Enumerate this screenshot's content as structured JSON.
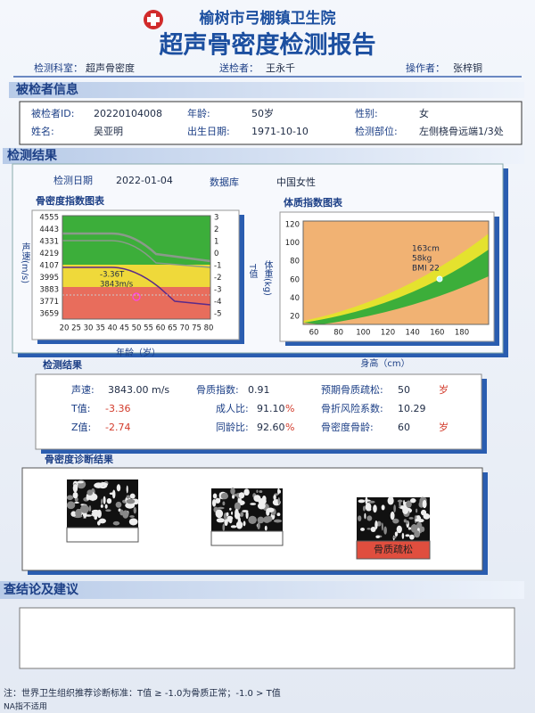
{
  "header": {
    "hospital": "榆树市弓棚镇卫生院",
    "title": "超声骨密度检测报告"
  },
  "info_line": [
    {
      "label": "检测科室：",
      "value": "超声骨密度"
    },
    {
      "label": "送检者：",
      "value": "王永千"
    },
    {
      "label": "操作者：",
      "value": "张梓铜"
    }
  ],
  "patient": {
    "title": "被检者信息",
    "fields": [
      {
        "label": "被检者ID:",
        "value": "20220104008"
      },
      {
        "label": "年龄:",
        "value": "50岁"
      },
      {
        "label": "性别:",
        "value": "女"
      },
      {
        "label": "姓名:",
        "value": "吴亚明"
      },
      {
        "label": "出生日期:",
        "value": "1971-10-10"
      },
      {
        "label": "检测部位:",
        "value": "左侧桡骨远端1/3处"
      }
    ]
  },
  "results": {
    "title": "检测结果",
    "date_label": "检测日期",
    "date": "2022-01-04",
    "db_label": "数据库",
    "db": "中国女性",
    "bmd_chart": {
      "title": "骨密度指数图表",
      "y_label": "声速(m/s)",
      "y2_label": "T值",
      "x_label": "年龄（岁）",
      "yticks": [
        "4555",
        "4443",
        "4331",
        "4219",
        "4107",
        "3995",
        "3883",
        "3771",
        "3659"
      ],
      "y2ticks": [
        "3",
        "2",
        "1",
        "0",
        "-1",
        "-2",
        "-3",
        "-4",
        "-5"
      ],
      "xticks": [
        "20",
        "25",
        "30",
        "35",
        "40",
        "45",
        "50",
        "55",
        "60",
        "65",
        "70",
        "75",
        "80"
      ],
      "annotations": [
        "-3.36T",
        "3843m/s"
      ]
    },
    "bmi_chart": {
      "title": "体质指数图表",
      "y_label": "体重(kg)",
      "x_label": "身高（cm）",
      "yticks": [
        "120",
        "100",
        "80",
        "60",
        "40",
        "20"
      ],
      "xticks": [
        "60",
        "80",
        "100",
        "120",
        "140",
        "160",
        "180"
      ],
      "annotations": [
        "163cm",
        "58kg",
        "BMI 22"
      ]
    }
  },
  "measurements": {
    "title": "检测结果",
    "items": [
      {
        "label": "声速:",
        "value": "3843.00",
        "unit": "m/s"
      },
      {
        "label": "T值:",
        "value": "-3.36"
      },
      {
        "label": "Z值:",
        "value": "-2.74"
      },
      {
        "label": "骨质指数:",
        "value": "0.91"
      },
      {
        "label": "成人比:",
        "value": "91.10",
        "unit": "%"
      },
      {
        "label": "同龄比:",
        "value": "92.60",
        "unit": "%"
      },
      {
        "label": "预期骨质疏松:",
        "value": "50",
        "unit": "岁"
      },
      {
        "label": "骨折风险系数:",
        "value": "10.29"
      },
      {
        "label": "骨密度骨龄:",
        "value": "60",
        "unit": "岁"
      }
    ]
  },
  "diagnosis": {
    "title": "骨密度诊断结果",
    "result": "骨质疏松"
  },
  "conclusion": {
    "title": "查结论及建议"
  },
  "footer": {
    "note": "注：世界卫生组织推荐诊断标准：T值 ≥ -1.0为骨质正常；-1.0 > T值",
    "na": "NA指不适用"
  }
}
